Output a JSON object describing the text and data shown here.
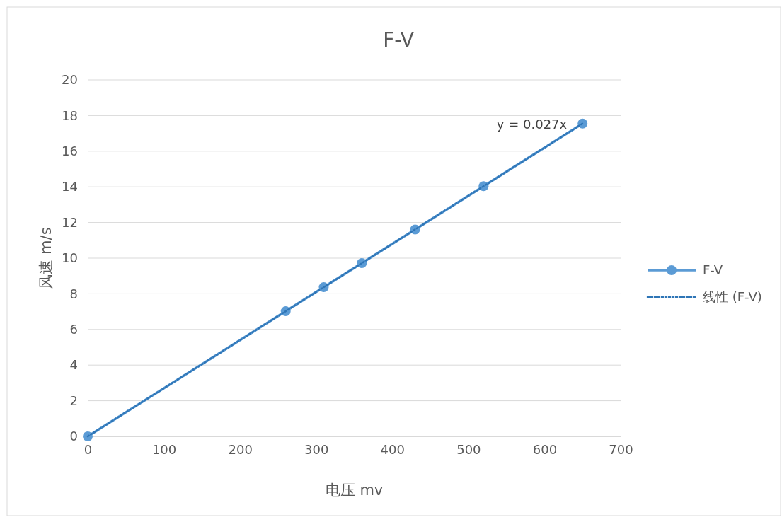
{
  "chart_data": {
    "type": "line",
    "title": "F-V",
    "xlabel": "电压  mv",
    "ylabel": "风速   m/s",
    "xlim": [
      0,
      700
    ],
    "xticks": [
      0,
      100,
      200,
      300,
      400,
      500,
      600,
      700
    ],
    "ylim": [
      0,
      20
    ],
    "yticks": [
      0,
      2,
      4,
      6,
      8,
      10,
      12,
      14,
      16,
      18,
      20
    ],
    "grid": "y",
    "legend": "right",
    "marker": "circle",
    "line_style": "solid",
    "series": [
      {
        "name": "F-V",
        "color": "#5b9bd5",
        "x": [
          0,
          260,
          310,
          360,
          430,
          520,
          650
        ],
        "values": [
          0,
          7.02,
          8.37,
          9.72,
          11.61,
          14.04,
          17.55
        ]
      },
      {
        "name": "线性 (F-V)",
        "color": "#2e75b6",
        "type": "line",
        "x": [
          0,
          650
        ],
        "values": [
          0,
          17.55
        ],
        "marker": "none",
        "line_style": "dotted"
      }
    ],
    "annotations": [
      {
        "text": "y = 0.027x",
        "x": 650,
        "y": 17.55
      }
    ]
  }
}
